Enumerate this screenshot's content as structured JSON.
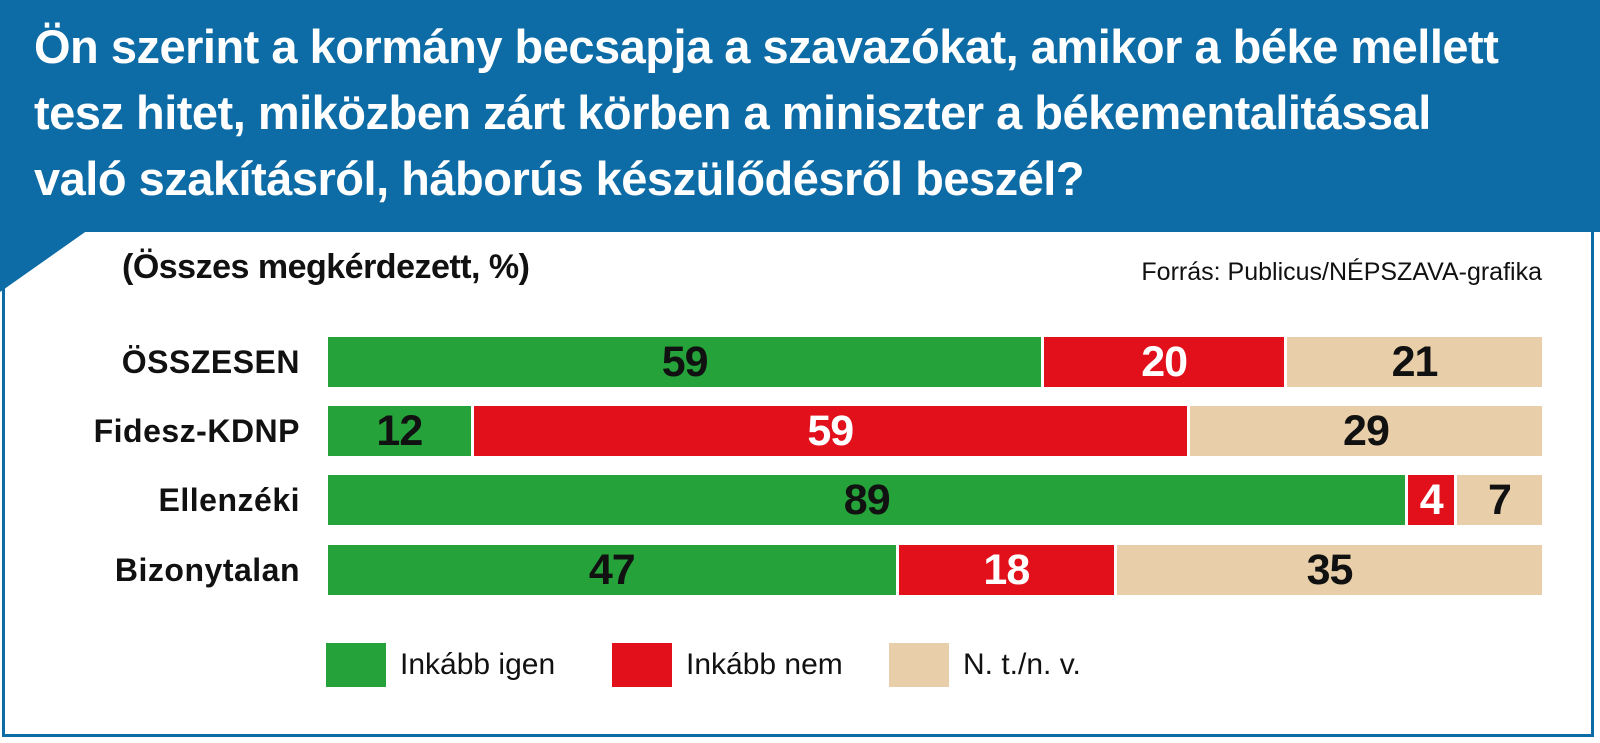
{
  "header": {
    "title_lines": [
      "Ön szerint a kormány becsapja a szavazókat, amikor a béke mellett",
      "tesz hitet, miközben zárt körben a miniszter a békementalitással",
      "való szakításról, háborús készülődésről beszél?"
    ]
  },
  "subtitle": "(Összes megkérdezett, %)",
  "source": "Forrás: Publicus/NÉPSZAVA-grafika",
  "colors": {
    "header_bg": "#0d6ba6",
    "igen": "#25a23a",
    "nem": "#e1101b",
    "ntnv": "#e9cfa9"
  },
  "chart_data": {
    "type": "bar",
    "orientation": "horizontal",
    "stacked": true,
    "xlim": [
      0,
      100
    ],
    "categories": [
      "ÖSSZESEN",
      "Fidesz-KDNP",
      "Ellenzéki",
      "Bizonytalan"
    ],
    "series": [
      {
        "name": "Inkább igen",
        "values": [
          59,
          12,
          89,
          47
        ]
      },
      {
        "name": "Inkább nem",
        "values": [
          20,
          59,
          4,
          18
        ]
      },
      {
        "name": "N. t./n. v.",
        "values": [
          21,
          29,
          7,
          35
        ]
      }
    ],
    "legend_position": "bottom"
  }
}
